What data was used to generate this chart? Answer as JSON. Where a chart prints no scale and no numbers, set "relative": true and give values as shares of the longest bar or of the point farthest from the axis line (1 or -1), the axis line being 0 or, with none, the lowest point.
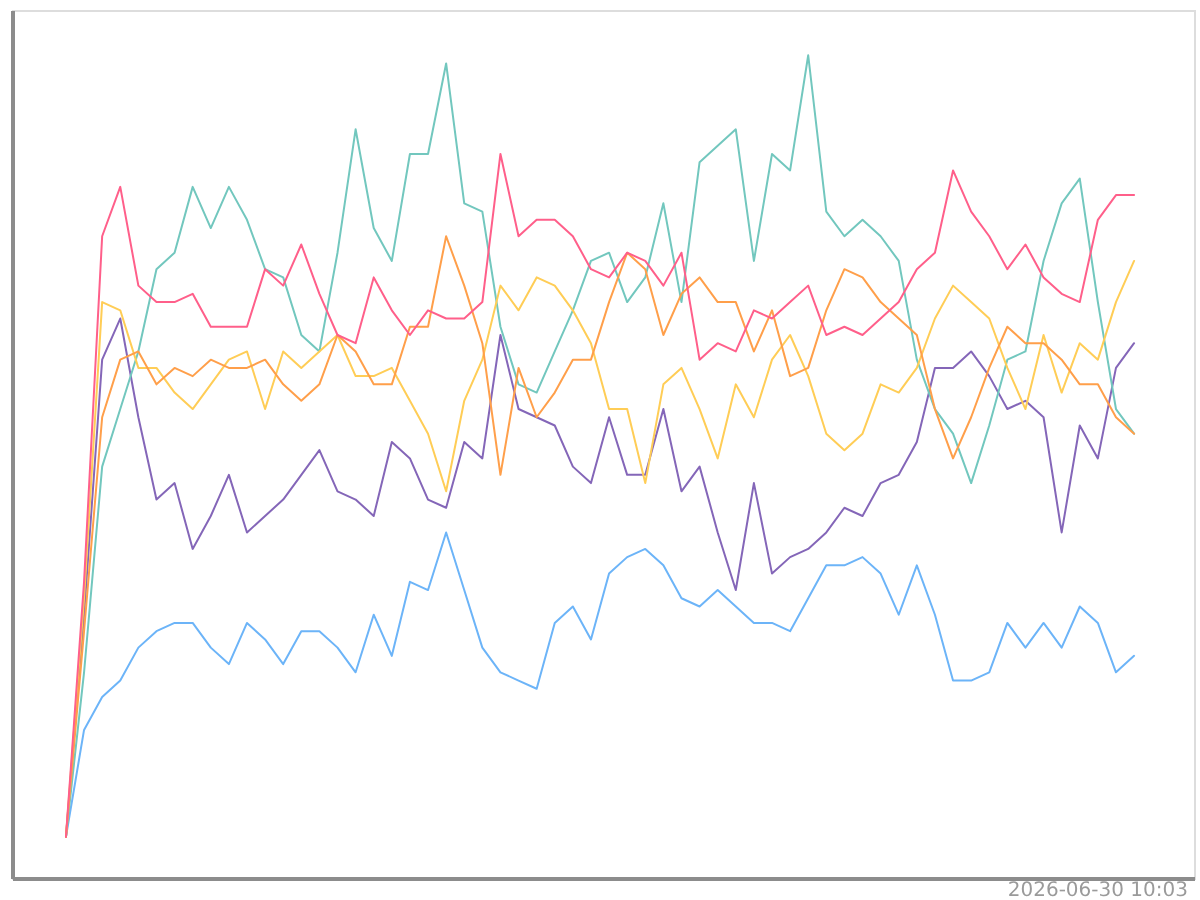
{
  "chart_data": {
    "type": "line",
    "relative": true,
    "annotations": [
      "2026-06-30 10:03"
    ],
    "categories": [
      null,
      null,
      null,
      null,
      null,
      null,
      null,
      null,
      null,
      null,
      null,
      null,
      null,
      null,
      null,
      null,
      null,
      null,
      null,
      null,
      null,
      null,
      null,
      null,
      null,
      null,
      null,
      null,
      null,
      null,
      null,
      null,
      null,
      null,
      null,
      null,
      null,
      null,
      null,
      null,
      null,
      null,
      null,
      null,
      null,
      null,
      null,
      null,
      null,
      null,
      null,
      null,
      null,
      null,
      null,
      null,
      null,
      null,
      null,
      null
    ],
    "series": [
      {
        "color": "#6cb4f8",
        "values": [
          0.05,
          0.18,
          0.22,
          0.24,
          0.28,
          0.3,
          0.31,
          0.31,
          0.28,
          0.26,
          0.31,
          0.29,
          0.26,
          0.3,
          0.3,
          0.28,
          0.25,
          0.32,
          0.27,
          0.36,
          0.35,
          0.42,
          0.35,
          0.28,
          0.25,
          0.24,
          0.23,
          0.31,
          0.33,
          0.29,
          0.37,
          0.39,
          0.4,
          0.38,
          0.34,
          0.33,
          0.35,
          0.33,
          0.31,
          0.31,
          0.3,
          0.34,
          0.38,
          0.38,
          0.39,
          0.37,
          0.32,
          0.38,
          0.32,
          0.24,
          0.24,
          0.25,
          0.31,
          0.28,
          0.31,
          0.28,
          0.33,
          0.31,
          0.25,
          0.27
        ]
      },
      {
        "color": "#8466b8",
        "values": [
          0.05,
          0.32,
          0.63,
          0.68,
          0.56,
          0.46,
          0.48,
          0.4,
          0.44,
          0.49,
          0.42,
          0.44,
          0.46,
          0.49,
          0.52,
          0.47,
          0.46,
          0.44,
          0.53,
          0.51,
          0.46,
          0.45,
          0.53,
          0.51,
          0.66,
          0.57,
          0.56,
          0.55,
          0.5,
          0.48,
          0.56,
          0.49,
          0.49,
          0.57,
          0.47,
          0.5,
          0.42,
          0.35,
          0.48,
          0.37,
          0.39,
          0.4,
          0.42,
          0.45,
          0.44,
          0.48,
          0.49,
          0.53,
          0.62,
          0.62,
          0.64,
          0.61,
          0.57,
          0.58,
          0.56,
          0.42,
          0.55,
          0.51,
          0.62,
          0.65
        ]
      },
      {
        "color": "#72c7be",
        "values": [
          0.05,
          0.25,
          0.5,
          0.57,
          0.64,
          0.74,
          0.76,
          0.84,
          0.79,
          0.84,
          0.8,
          0.74,
          0.73,
          0.66,
          0.64,
          0.76,
          0.91,
          0.79,
          0.75,
          0.88,
          0.88,
          0.99,
          0.82,
          0.81,
          0.67,
          0.6,
          0.59,
          0.64,
          0.69,
          0.75,
          0.76,
          0.7,
          0.73,
          0.82,
          0.7,
          0.87,
          0.89,
          0.91,
          0.75,
          0.88,
          0.86,
          1.0,
          0.81,
          0.78,
          0.8,
          0.78,
          0.75,
          0.63,
          0.57,
          0.54,
          0.48,
          0.55,
          0.63,
          0.64,
          0.75,
          0.82,
          0.85,
          0.7,
          0.57,
          0.54
        ]
      },
      {
        "color": "#ffcd56",
        "values": [
          0.05,
          0.34,
          0.7,
          0.69,
          0.62,
          0.62,
          0.59,
          0.57,
          0.6,
          0.63,
          0.64,
          0.57,
          0.64,
          0.62,
          0.64,
          0.66,
          0.61,
          0.61,
          0.62,
          0.58,
          0.54,
          0.47,
          0.58,
          0.63,
          0.72,
          0.69,
          0.73,
          0.72,
          0.69,
          0.65,
          0.57,
          0.57,
          0.48,
          0.6,
          0.62,
          0.57,
          0.51,
          0.6,
          0.56,
          0.63,
          0.66,
          0.61,
          0.54,
          0.52,
          0.54,
          0.6,
          0.59,
          0.62,
          0.68,
          0.72,
          0.7,
          0.68,
          0.62,
          0.57,
          0.66,
          0.59,
          0.65,
          0.63,
          0.7,
          0.75
        ]
      },
      {
        "color": "#ff9f4a",
        "values": [
          0.05,
          0.3,
          0.56,
          0.63,
          0.64,
          0.6,
          0.62,
          0.61,
          0.63,
          0.62,
          0.62,
          0.63,
          0.6,
          0.58,
          0.6,
          0.66,
          0.64,
          0.6,
          0.6,
          0.67,
          0.67,
          0.78,
          0.72,
          0.65,
          0.49,
          0.62,
          0.56,
          0.59,
          0.63,
          0.63,
          0.7,
          0.76,
          0.74,
          0.66,
          0.71,
          0.73,
          0.7,
          0.7,
          0.64,
          0.69,
          0.61,
          0.62,
          0.69,
          0.74,
          0.73,
          0.7,
          0.68,
          0.66,
          0.57,
          0.51,
          0.56,
          0.62,
          0.67,
          0.65,
          0.65,
          0.63,
          0.6,
          0.6,
          0.56,
          0.54
        ]
      },
      {
        "color": "#ff5f8a",
        "values": [
          0.05,
          0.36,
          0.78,
          0.84,
          0.72,
          0.7,
          0.7,
          0.71,
          0.67,
          0.67,
          0.67,
          0.74,
          0.72,
          0.77,
          0.71,
          0.66,
          0.65,
          0.73,
          0.69,
          0.66,
          0.69,
          0.68,
          0.68,
          0.7,
          0.88,
          0.78,
          0.8,
          0.8,
          0.78,
          0.74,
          0.73,
          0.76,
          0.75,
          0.72,
          0.76,
          0.63,
          0.65,
          0.64,
          0.69,
          0.68,
          0.7,
          0.72,
          0.66,
          0.67,
          0.66,
          0.68,
          0.7,
          0.74,
          0.76,
          0.86,
          0.81,
          0.78,
          0.74,
          0.77,
          0.73,
          0.71,
          0.7,
          0.8,
          0.83,
          0.83
        ]
      }
    ]
  }
}
